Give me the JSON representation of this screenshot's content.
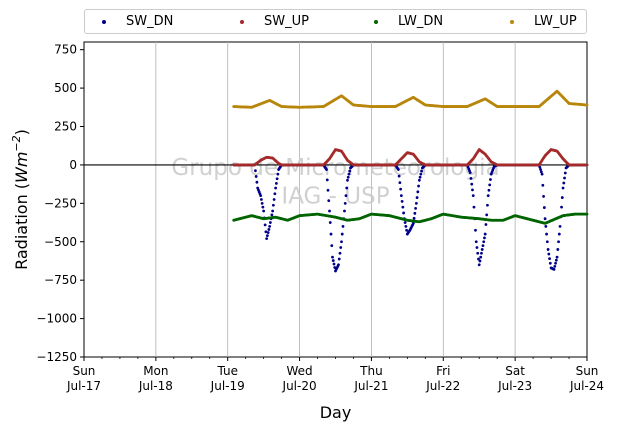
{
  "chart_data": {
    "type": "scatter",
    "title": "",
    "xlabel": "Day",
    "ylabel_text": "Radiation (",
    "ylabel_unit_main": "Wm",
    "ylabel_unit_exp": "−2",
    "ylabel_close": ")",
    "ylim": [
      -1250,
      800
    ],
    "yticks": [
      -1250,
      -1000,
      -750,
      -500,
      -250,
      0,
      250,
      500,
      750
    ],
    "ytick_labels": [
      "−1250",
      "−1000",
      "−750",
      "−500",
      "−250",
      "0",
      "250",
      "500",
      "750"
    ],
    "xlim_days": [
      0,
      7
    ],
    "xticks": [
      {
        "day": 0,
        "weekday": "Sun",
        "date": "Jul-17"
      },
      {
        "day": 1,
        "weekday": "Mon",
        "date": "Jul-18"
      },
      {
        "day": 2,
        "weekday": "Tue",
        "date": "Jul-19"
      },
      {
        "day": 3,
        "weekday": "Wed",
        "date": "Jul-20"
      },
      {
        "day": 4,
        "weekday": "Thu",
        "date": "Jul-21"
      },
      {
        "day": 5,
        "weekday": "Fri",
        "date": "Jul-22"
      },
      {
        "day": 6,
        "weekday": "Sat",
        "date": "Jul-23"
      },
      {
        "day": 7,
        "weekday": "Sun",
        "date": "Jul-24"
      }
    ],
    "grid": "vertical",
    "zero_line": 0,
    "legend_placement": "top",
    "watermark_line1": "Grupo de Micrometeorologia",
    "watermark_line2": "IAG - USP",
    "series": [
      {
        "name": "SW_DN",
        "color": "#00008b",
        "x": [
          "Jul-19 02:00",
          "Jul-19 09:00",
          "Jul-19 10:00",
          "Jul-19 11:00",
          "Jul-19 12:00",
          "Jul-19 13:00",
          "Jul-19 14:00",
          "Jul-19 15:00",
          "Jul-19 16:00",
          "Jul-19 17:00",
          "Jul-19 18:00",
          "Jul-19 23:00",
          "Jul-20 08:00",
          "Jul-20 09:00",
          "Jul-20 10:00",
          "Jul-20 11:00",
          "Jul-20 12:00",
          "Jul-20 13:00",
          "Jul-20 14:00",
          "Jul-20 15:00",
          "Jul-20 16:00",
          "Jul-20 17:00",
          "Jul-20 18:00",
          "Jul-20 23:00",
          "Jul-21 08:00",
          "Jul-21 09:00",
          "Jul-21 10:00",
          "Jul-21 11:00",
          "Jul-21 12:00",
          "Jul-21 13:00",
          "Jul-21 14:00",
          "Jul-21 15:00",
          "Jul-21 16:00",
          "Jul-21 17:00",
          "Jul-21 18:00",
          "Jul-21 23:00",
          "Jul-22 08:00",
          "Jul-22 09:00",
          "Jul-22 10:00",
          "Jul-22 11:00",
          "Jul-22 12:00",
          "Jul-22 13:00",
          "Jul-22 14:00",
          "Jul-22 15:00",
          "Jul-22 16:00",
          "Jul-22 17:00",
          "Jul-22 18:00",
          "Jul-22 23:00",
          "Jul-23 08:00",
          "Jul-23 09:00",
          "Jul-23 10:00",
          "Jul-23 11:00",
          "Jul-23 12:00",
          "Jul-23 13:00",
          "Jul-23 14:00",
          "Jul-23 15:00",
          "Jul-23 16:00",
          "Jul-23 17:00",
          "Jul-23 18:00",
          "Jul-23 23:00",
          "Jul-24 00:00"
        ],
        "y": [
          0,
          0,
          -150,
          -200,
          -300,
          -480,
          -400,
          -300,
          -150,
          -30,
          0,
          0,
          0,
          -30,
          -300,
          -600,
          -690,
          -650,
          -500,
          -300,
          -100,
          -20,
          0,
          0,
          0,
          -30,
          -200,
          -350,
          -450,
          -420,
          -380,
          -250,
          -100,
          -20,
          0,
          0,
          0,
          -50,
          -200,
          -500,
          -650,
          -550,
          -450,
          -200,
          -60,
          -10,
          0,
          0,
          0,
          -60,
          -350,
          -550,
          -670,
          -680,
          -600,
          -400,
          -150,
          -20,
          0,
          0,
          0
        ]
      },
      {
        "name": "SW_UP",
        "color": "#a52a2a",
        "x": [
          "Jul-19 02:00",
          "Jul-19 09:00",
          "Jul-19 11:00",
          "Jul-19 13:00",
          "Jul-19 15:00",
          "Jul-19 17:00",
          "Jul-19 18:00",
          "Jul-20 08:00",
          "Jul-20 10:00",
          "Jul-20 12:00",
          "Jul-20 14:00",
          "Jul-20 16:00",
          "Jul-20 18:00",
          "Jul-21 08:00",
          "Jul-21 10:00",
          "Jul-21 12:00",
          "Jul-21 14:00",
          "Jul-21 16:00",
          "Jul-21 18:00",
          "Jul-22 08:00",
          "Jul-22 10:00",
          "Jul-22 12:00",
          "Jul-22 14:00",
          "Jul-22 16:00",
          "Jul-22 18:00",
          "Jul-23 08:00",
          "Jul-23 10:00",
          "Jul-23 12:00",
          "Jul-23 14:00",
          "Jul-23 16:00",
          "Jul-23 18:00",
          "Jul-24 00:00"
        ],
        "y": [
          0,
          0,
          30,
          50,
          45,
          10,
          0,
          0,
          40,
          100,
          90,
          30,
          0,
          0,
          40,
          80,
          70,
          20,
          0,
          0,
          40,
          100,
          70,
          20,
          0,
          0,
          60,
          100,
          90,
          40,
          0,
          0
        ]
      },
      {
        "name": "LW_DN",
        "color": "#006400",
        "x": [
          "Jul-19 02:00",
          "Jul-19 08:00",
          "Jul-19 12:00",
          "Jul-19 16:00",
          "Jul-19 20:00",
          "Jul-20 00:00",
          "Jul-20 06:00",
          "Jul-20 12:00",
          "Jul-20 16:00",
          "Jul-20 20:00",
          "Jul-21 00:00",
          "Jul-21 06:00",
          "Jul-21 12:00",
          "Jul-21 16:00",
          "Jul-21 20:00",
          "Jul-22 00:00",
          "Jul-22 06:00",
          "Jul-22 12:00",
          "Jul-22 16:00",
          "Jul-22 20:00",
          "Jul-23 00:00",
          "Jul-23 06:00",
          "Jul-23 10:00",
          "Jul-23 16:00",
          "Jul-23 20:00",
          "Jul-24 00:00"
        ],
        "y": [
          -360,
          -330,
          -350,
          -340,
          -360,
          -330,
          -320,
          -340,
          -360,
          -350,
          -320,
          -330,
          -360,
          -370,
          -350,
          -320,
          -340,
          -350,
          -360,
          -360,
          -330,
          -360,
          -380,
          -330,
          -320,
          -320
        ]
      },
      {
        "name": "LW_UP",
        "color": "#b8860b",
        "x": [
          "Jul-19 02:00",
          "Jul-19 08:00",
          "Jul-19 14:00",
          "Jul-19 18:00",
          "Jul-20 00:00",
          "Jul-20 08:00",
          "Jul-20 14:00",
          "Jul-20 18:00",
          "Jul-21 00:00",
          "Jul-21 08:00",
          "Jul-21 14:00",
          "Jul-21 18:00",
          "Jul-22 00:00",
          "Jul-22 08:00",
          "Jul-22 14:00",
          "Jul-22 18:00",
          "Jul-23 00:00",
          "Jul-23 08:00",
          "Jul-23 14:00",
          "Jul-23 18:00",
          "Jul-24 00:00"
        ],
        "y": [
          380,
          375,
          420,
          380,
          375,
          380,
          450,
          390,
          380,
          380,
          440,
          390,
          380,
          380,
          430,
          380,
          380,
          380,
          480,
          400,
          390
        ]
      }
    ]
  }
}
